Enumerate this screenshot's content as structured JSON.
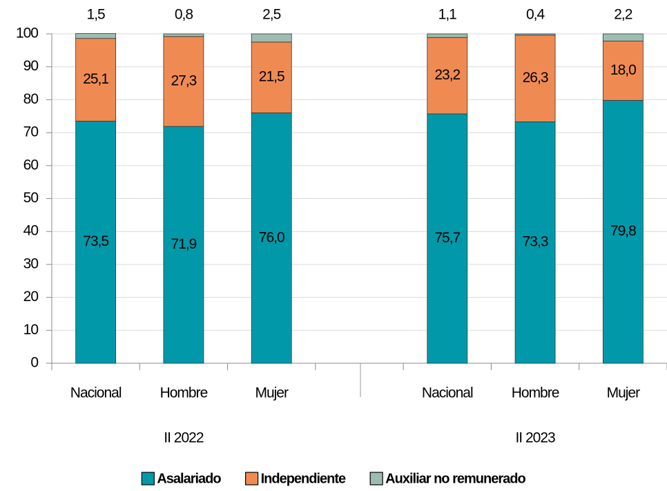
{
  "chart_data": {
    "type": "stacked_bar",
    "categories": [
      "Nacional",
      "Hombre",
      "Mujer",
      null,
      "Nacional",
      "Hombre",
      "Mujer"
    ],
    "group_labels": [
      "II 2022",
      "II 2023"
    ],
    "series": [
      {
        "name": "Asalariado",
        "color": "#0199aa",
        "values": [
          73.5,
          71.9,
          76.0,
          null,
          75.7,
          73.3,
          79.8
        ],
        "value_labels": [
          "73,5",
          "71,9",
          "76,0",
          null,
          "75,7",
          "73,3",
          "79,8"
        ]
      },
      {
        "name": "Independiente",
        "color": "#ef8b52",
        "values": [
          25.1,
          27.3,
          21.5,
          null,
          23.2,
          26.3,
          18.0
        ],
        "value_labels": [
          "25,1",
          "27,3",
          "21,5",
          null,
          "23,2",
          "26,3",
          "18,0"
        ]
      },
      {
        "name": "Auxiliar no remunerado",
        "color": "#9fbcb0",
        "values": [
          1.5,
          0.8,
          2.5,
          null,
          1.1,
          0.4,
          2.2
        ],
        "value_labels": [
          "1,5",
          "0,8",
          "2,5",
          null,
          "1,1",
          "0,4",
          "2,2"
        ]
      }
    ],
    "ylim": [
      0,
      100
    ],
    "yticks": [
      0,
      10,
      20,
      30,
      40,
      50,
      60,
      70,
      80,
      90,
      100
    ],
    "grid": true,
    "legend": "bottom"
  }
}
